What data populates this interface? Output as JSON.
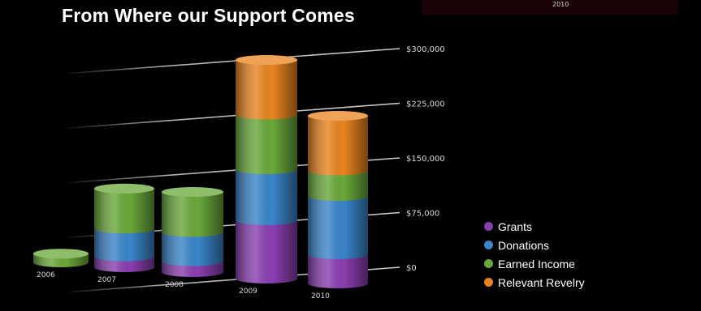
{
  "top_strip_label": "2010",
  "title": "From Where our Support Comes",
  "chart_data": {
    "type": "bar",
    "stacked": true,
    "categories": [
      "2006",
      "2007",
      "2008",
      "2009",
      "2010"
    ],
    "series": [
      {
        "name": "Grants",
        "color": "#8a3fb0",
        "values": [
          0,
          15000,
          15000,
          80000,
          40000
        ]
      },
      {
        "name": "Donations",
        "color": "#3a85c9",
        "values": [
          0,
          38000,
          40000,
          70000,
          80000
        ]
      },
      {
        "name": "Earned Income",
        "color": "#6aa83a",
        "values": [
          12000,
          55000,
          55000,
          75000,
          35000
        ]
      },
      {
        "name": "Relevant Revelry",
        "color": "#e8841f",
        "values": [
          0,
          0,
          0,
          75000,
          75000
        ]
      }
    ],
    "y_ticks": [
      "$0",
      "$75,000",
      "$150,000",
      "$225,000",
      "$300,000"
    ],
    "ylim": [
      0,
      300000
    ],
    "grid": true,
    "legend_position": "bottom-right"
  }
}
